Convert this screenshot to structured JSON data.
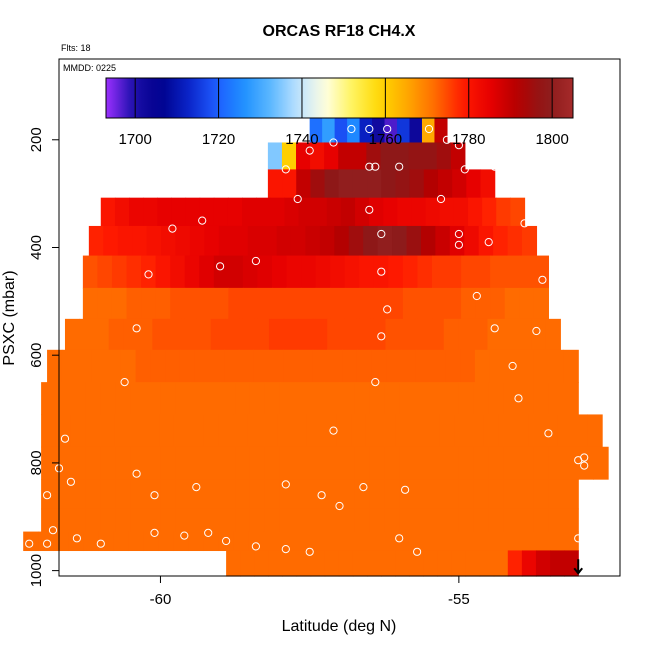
{
  "chart_data": {
    "type": "heatmap",
    "title": "ORCAS RF18 CH4.X",
    "flts_label": "Flts: 18",
    "mmdd_label": "MMDD: 0225",
    "xlabel": "Latitude (deg N)",
    "ylabel": "PSXC (mbar)",
    "xlim": [
      -61.7,
      -52.3
    ],
    "ylim": [
      1010,
      50
    ],
    "x_ticks": [
      -60,
      -55
    ],
    "y_ticks": [
      200,
      400,
      600,
      800,
      1000
    ],
    "colorbar": {
      "min": 1693,
      "max": 1805,
      "ticks": [
        1700,
        1720,
        1740,
        1760,
        1780,
        1800
      ],
      "stops": [
        "#9b30ff",
        "#1b0faa",
        "#00008b",
        "#0a24c8",
        "#1e5bff",
        "#1e90ff",
        "#5cb8ff",
        "#bfe3ff",
        "#ffffe0",
        "#fff35a",
        "#ffd700",
        "#ffa500",
        "#ff6a00",
        "#ff1a00",
        "#e60000",
        "#b40000",
        "#8b1a1a",
        "#a52a2a"
      ]
    },
    "rows": [
      {
        "p": 180,
        "lat_min": -57.5,
        "lat_max": -55.2,
        "values": [
          1722,
          1728,
          1718,
          1725,
          1712,
          1702,
          1697,
          1715,
          1703,
          1765,
          1790
        ]
      },
      {
        "p": 230,
        "lat_min": -58.2,
        "lat_max": -54.9,
        "values": [
          1735,
          1760,
          1785,
          1782,
          1785,
          1790,
          1790,
          1795,
          1798,
          1798,
          1797,
          1797,
          1795,
          1790
        ]
      },
      {
        "p": 280,
        "lat_min": -58.2,
        "lat_max": -54.4,
        "values": [
          1780,
          1780,
          1790,
          1795,
          1798,
          1800,
          1800,
          1800,
          1798,
          1797,
          1795,
          1792,
          1790,
          1788,
          1785,
          1782
        ]
      },
      {
        "p": 335,
        "lat_min": -61.0,
        "lat_max": -53.9,
        "values": [
          1780,
          1782,
          1784,
          1784,
          1785,
          1785,
          1785,
          1785,
          1785,
          1785,
          1786,
          1786,
          1786,
          1787,
          1788,
          1788,
          1789,
          1790,
          1788,
          1786,
          1785,
          1784,
          1784,
          1783,
          1782,
          1782,
          1780,
          1778,
          1776,
          1775
        ]
      },
      {
        "p": 385,
        "lat_min": -61.2,
        "lat_max": -53.7,
        "values": [
          1778,
          1779,
          1780,
          1780,
          1781,
          1782,
          1783,
          1784,
          1785,
          1786,
          1786,
          1787,
          1787,
          1788,
          1788,
          1789,
          1790,
          1792,
          1795,
          1798,
          1800,
          1799,
          1796,
          1792,
          1789,
          1786,
          1783,
          1780,
          1778,
          1777,
          1776
        ]
      },
      {
        "p": 445,
        "lat_min": -61.3,
        "lat_max": -53.5,
        "values": [
          1774,
          1775,
          1776,
          1777,
          1778,
          1780,
          1782,
          1784,
          1786,
          1788,
          1788,
          1787,
          1786,
          1785,
          1784,
          1784,
          1783,
          1782,
          1781,
          1780,
          1780,
          1779,
          1778,
          1777,
          1776,
          1776,
          1775,
          1775,
          1774,
          1774,
          1774,
          1774
        ]
      },
      {
        "p": 505,
        "lat_min": -61.3,
        "lat_max": -53.5,
        "values": [
          1772,
          1772,
          1772,
          1773,
          1773,
          1773,
          1774,
          1774,
          1774,
          1774,
          1775,
          1775,
          1775,
          1775,
          1775,
          1775,
          1775,
          1775,
          1775,
          1775,
          1775,
          1775,
          1774,
          1774,
          1774,
          1774,
          1773,
          1773,
          1773,
          1772,
          1772,
          1772
        ]
      },
      {
        "p": 560,
        "lat_min": -61.6,
        "lat_max": -53.3,
        "values": [
          1772,
          1772,
          1772,
          1773,
          1773,
          1773,
          1774,
          1774,
          1774,
          1774,
          1775,
          1775,
          1775,
          1775,
          1776,
          1776,
          1776,
          1776,
          1775,
          1775,
          1775,
          1775,
          1774,
          1774,
          1774,
          1774,
          1773,
          1773,
          1773,
          1772,
          1772,
          1772,
          1772,
          1772
        ]
      },
      {
        "p": 620,
        "lat_min": -61.9,
        "lat_max": -53.0,
        "values": [
          1772,
          1772,
          1772,
          1772,
          1772,
          1772,
          1773,
          1773,
          1773,
          1773,
          1773,
          1773,
          1773,
          1773,
          1773,
          1773,
          1773,
          1773,
          1773,
          1773,
          1773,
          1773,
          1773,
          1773,
          1773,
          1773,
          1773,
          1773,
          1773,
          1772,
          1772,
          1772,
          1772,
          1772,
          1772,
          1772
        ]
      },
      {
        "p": 680,
        "lat_min": -62.0,
        "lat_max": -53.0,
        "values": [
          1772,
          1772,
          1772,
          1772,
          1772,
          1772,
          1772,
          1772,
          1772,
          1772,
          1772,
          1772,
          1772,
          1772,
          1772,
          1772,
          1772,
          1772,
          1772,
          1772,
          1772,
          1772,
          1772,
          1772,
          1772,
          1772,
          1772,
          1772,
          1772,
          1772,
          1772,
          1772,
          1772,
          1772,
          1772,
          1772
        ]
      },
      {
        "p": 740,
        "lat_min": -62.0,
        "lat_max": -52.6,
        "values": [
          1772,
          1772,
          1772,
          1772,
          1772,
          1772,
          1772,
          1772,
          1772,
          1772,
          1772,
          1772,
          1772,
          1772,
          1772,
          1772,
          1772,
          1772,
          1772,
          1772,
          1772,
          1772,
          1772,
          1772,
          1772,
          1772,
          1772,
          1772,
          1772,
          1772,
          1772,
          1772,
          1772,
          1772,
          1772,
          1772,
          1772,
          1772
        ]
      },
      {
        "p": 800,
        "lat_min": -62.0,
        "lat_max": -52.5,
        "values": [
          1772,
          1772,
          1772,
          1772,
          1772,
          1772,
          1772,
          1772,
          1772,
          1772,
          1772,
          1772,
          1772,
          1772,
          1772,
          1772,
          1772,
          1772,
          1772,
          1772,
          1772,
          1772,
          1772,
          1772,
          1772,
          1772,
          1772,
          1772,
          1772,
          1772,
          1772,
          1772,
          1772,
          1772,
          1772,
          1772,
          1772,
          1772
        ]
      },
      {
        "p": 860,
        "lat_min": -62.0,
        "lat_max": -53.0,
        "values": [
          1772,
          1772,
          1772,
          1772,
          1772,
          1772,
          1772,
          1772,
          1772,
          1772,
          1772,
          1772,
          1772,
          1772,
          1772,
          1772,
          1772,
          1772,
          1772,
          1772,
          1772,
          1772,
          1772,
          1772,
          1772,
          1772,
          1772,
          1772,
          1772,
          1772,
          1772,
          1772,
          1772,
          1772,
          1772,
          1772
        ]
      },
      {
        "p": 910,
        "lat_min": -62.0,
        "lat_max": -53.0,
        "values": [
          1772,
          1772,
          1772,
          1772,
          1772,
          1772,
          1772,
          1772,
          1772,
          1772,
          1772,
          1772,
          1772,
          1772,
          1772,
          1772,
          1772,
          1772,
          1772,
          1772,
          1772,
          1772,
          1772,
          1772,
          1772,
          1772,
          1772,
          1772,
          1772,
          1772,
          1772,
          1772,
          1772,
          1772,
          1772,
          1772
        ]
      },
      {
        "p": 945,
        "lat_min": -62.3,
        "lat_max": -53.0,
        "values": [
          1772,
          1772,
          1772,
          1772,
          1772,
          1772,
          1772,
          1772,
          1772,
          1772,
          1772,
          1772,
          1772,
          1772,
          1772,
          1772,
          1772,
          1772,
          1772,
          1772,
          1772,
          1772,
          1772,
          1772,
          1772,
          1772,
          1772,
          1772,
          1772,
          1772,
          1772,
          1772,
          1772,
          1772,
          1772,
          1772,
          1772
        ]
      },
      {
        "p": 980,
        "lat_min": -58.9,
        "lat_max": -53.0,
        "values": [
          1772,
          1772,
          1772,
          1772,
          1772,
          1772,
          1772,
          1772,
          1772,
          1772,
          1772,
          1772,
          1772,
          1772,
          1772,
          1772,
          1772,
          1772,
          1772,
          1772,
          1778,
          1784,
          1788,
          1790,
          1790
        ]
      }
    ],
    "observations": [
      [
        -56.8,
        180
      ],
      [
        -56.2,
        180
      ],
      [
        -55.5,
        180
      ],
      [
        -56.5,
        180
      ],
      [
        -55.2,
        200
      ],
      [
        -57.1,
        205
      ],
      [
        -55.0,
        210
      ],
      [
        -57.5,
        220
      ],
      [
        -56.5,
        250
      ],
      [
        -56.0,
        250
      ],
      [
        -54.4,
        250
      ],
      [
        -56.4,
        250
      ],
      [
        -57.9,
        255
      ],
      [
        -54.9,
        255
      ],
      [
        -55.3,
        310
      ],
      [
        -57.7,
        310
      ],
      [
        -56.5,
        330
      ],
      [
        -59.3,
        350
      ],
      [
        -53.9,
        355
      ],
      [
        -59.8,
        365
      ],
      [
        -55.0,
        375
      ],
      [
        -56.3,
        375
      ],
      [
        -54.5,
        390
      ],
      [
        -55.0,
        395
      ],
      [
        -58.4,
        425
      ],
      [
        -56.3,
        445
      ],
      [
        -59.0,
        435
      ],
      [
        -60.2,
        450
      ],
      [
        -53.6,
        460
      ],
      [
        -54.7,
        490
      ],
      [
        -56.2,
        515
      ],
      [
        -54.4,
        550
      ],
      [
        -60.4,
        550
      ],
      [
        -53.7,
        555
      ],
      [
        -56.3,
        565
      ],
      [
        -54.1,
        620
      ],
      [
        -60.6,
        650
      ],
      [
        -56.4,
        650
      ],
      [
        -54.0,
        680
      ],
      [
        -57.1,
        740
      ],
      [
        -61.6,
        755
      ],
      [
        -53.5,
        745
      ],
      [
        -53.0,
        795
      ],
      [
        -52.9,
        805
      ],
      [
        -52.9,
        790
      ],
      [
        -61.7,
        810
      ],
      [
        -61.5,
        835
      ],
      [
        -61.9,
        860
      ],
      [
        -59.4,
        845
      ],
      [
        -57.9,
        840
      ],
      [
        -56.6,
        845
      ],
      [
        -57.3,
        860
      ],
      [
        -57.0,
        880
      ],
      [
        -55.9,
        850
      ],
      [
        -60.1,
        860
      ],
      [
        -60.4,
        820
      ],
      [
        -61.8,
        925
      ],
      [
        -61.4,
        940
      ],
      [
        -60.1,
        930
      ],
      [
        -59.6,
        935
      ],
      [
        -59.2,
        930
      ],
      [
        -58.9,
        945
      ],
      [
        -58.4,
        955
      ],
      [
        -57.9,
        960
      ],
      [
        -57.5,
        965
      ],
      [
        -56.0,
        940
      ],
      [
        -55.7,
        965
      ],
      [
        -53.0,
        940
      ],
      [
        -62.2,
        950
      ],
      [
        -61.9,
        950
      ],
      [
        -61.0,
        950
      ]
    ],
    "arrow": {
      "lat": -53.0,
      "p": 1005
    }
  }
}
